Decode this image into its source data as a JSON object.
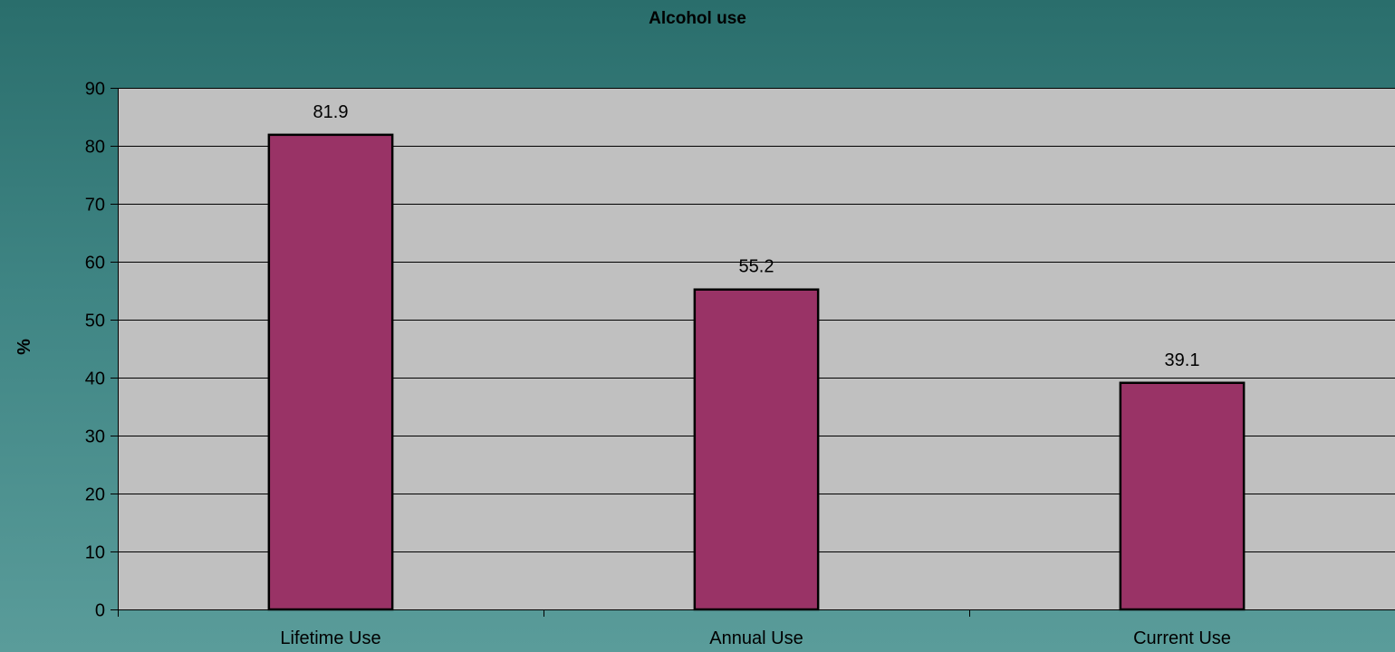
{
  "chart_data": {
    "type": "bar",
    "title": "Alcohol use",
    "xlabel": "",
    "ylabel": "%",
    "categories": [
      "Lifetime Use",
      "Annual Use",
      "Current Use"
    ],
    "values": [
      81.9,
      55.2,
      39.1
    ],
    "data_labels": [
      "81.9",
      "55.2",
      "39.1"
    ],
    "ylim": [
      0,
      90
    ],
    "yticks": [
      0,
      10,
      20,
      30,
      40,
      50,
      60,
      70,
      80,
      90
    ],
    "ytick_labels": [
      "0",
      "10",
      "20",
      "30",
      "40",
      "50",
      "60",
      "70",
      "80",
      "90"
    ],
    "grid": true,
    "legend": "none"
  },
  "colors": {
    "bar_fill": "#993366",
    "bar_stroke": "#000000",
    "plot_background": "#c0c0c0",
    "gridline": "#000000"
  }
}
